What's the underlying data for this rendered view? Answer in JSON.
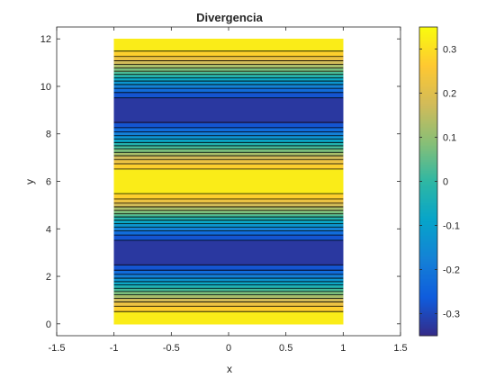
{
  "chart_data": {
    "type": "heatmap",
    "subtype": "filled-contour",
    "title": "Divergencia",
    "xlabel": "x",
    "ylabel": "y",
    "xlim": [
      -1.5,
      1.5
    ],
    "ylim": [
      -0.5,
      12.5
    ],
    "x_ticks": [
      -1.5,
      -1,
      -0.5,
      0,
      0.5,
      1,
      1.5
    ],
    "x_tick_labels": [
      "-1.5",
      "-1",
      "-0.5",
      "0",
      "0.5",
      "1",
      "1.5"
    ],
    "y_ticks": [
      0,
      2,
      4,
      6,
      8,
      10,
      12
    ],
    "y_tick_labels": [
      "0",
      "2",
      "4",
      "6",
      "8",
      "10",
      "12"
    ],
    "data_extent": {
      "x": [
        -1,
        1
      ],
      "y": [
        0,
        12
      ]
    },
    "field": {
      "formula": "approx. 0.35*cos(pi*y/3), constant in x",
      "min": -0.35,
      "max": 0.35
    },
    "contour_levels": [
      -0.3,
      -0.25,
      -0.2,
      -0.15,
      -0.1,
      -0.05,
      0,
      0.05,
      0.1,
      0.15,
      0.2,
      0.25,
      0.3
    ],
    "colormap": "parula",
    "colorbar": {
      "location": "right",
      "range": [
        -0.35,
        0.35
      ],
      "ticks": [
        -0.3,
        -0.2,
        -0.1,
        0,
        0.1,
        0.2,
        0.3
      ],
      "tick_labels": [
        "-0.3",
        "-0.2",
        "-0.1",
        "0",
        "0.1",
        "0.2",
        "0.3"
      ]
    },
    "grid": false
  },
  "colors": {
    "axis": "#262626",
    "contour_line": "#000000",
    "parula": [
      "#352a87",
      "#0f5cdd",
      "#1481d6",
      "#06a4ca",
      "#2eb7a4",
      "#87bf77",
      "#d1bb59",
      "#fec832",
      "#f9fb0e"
    ]
  }
}
